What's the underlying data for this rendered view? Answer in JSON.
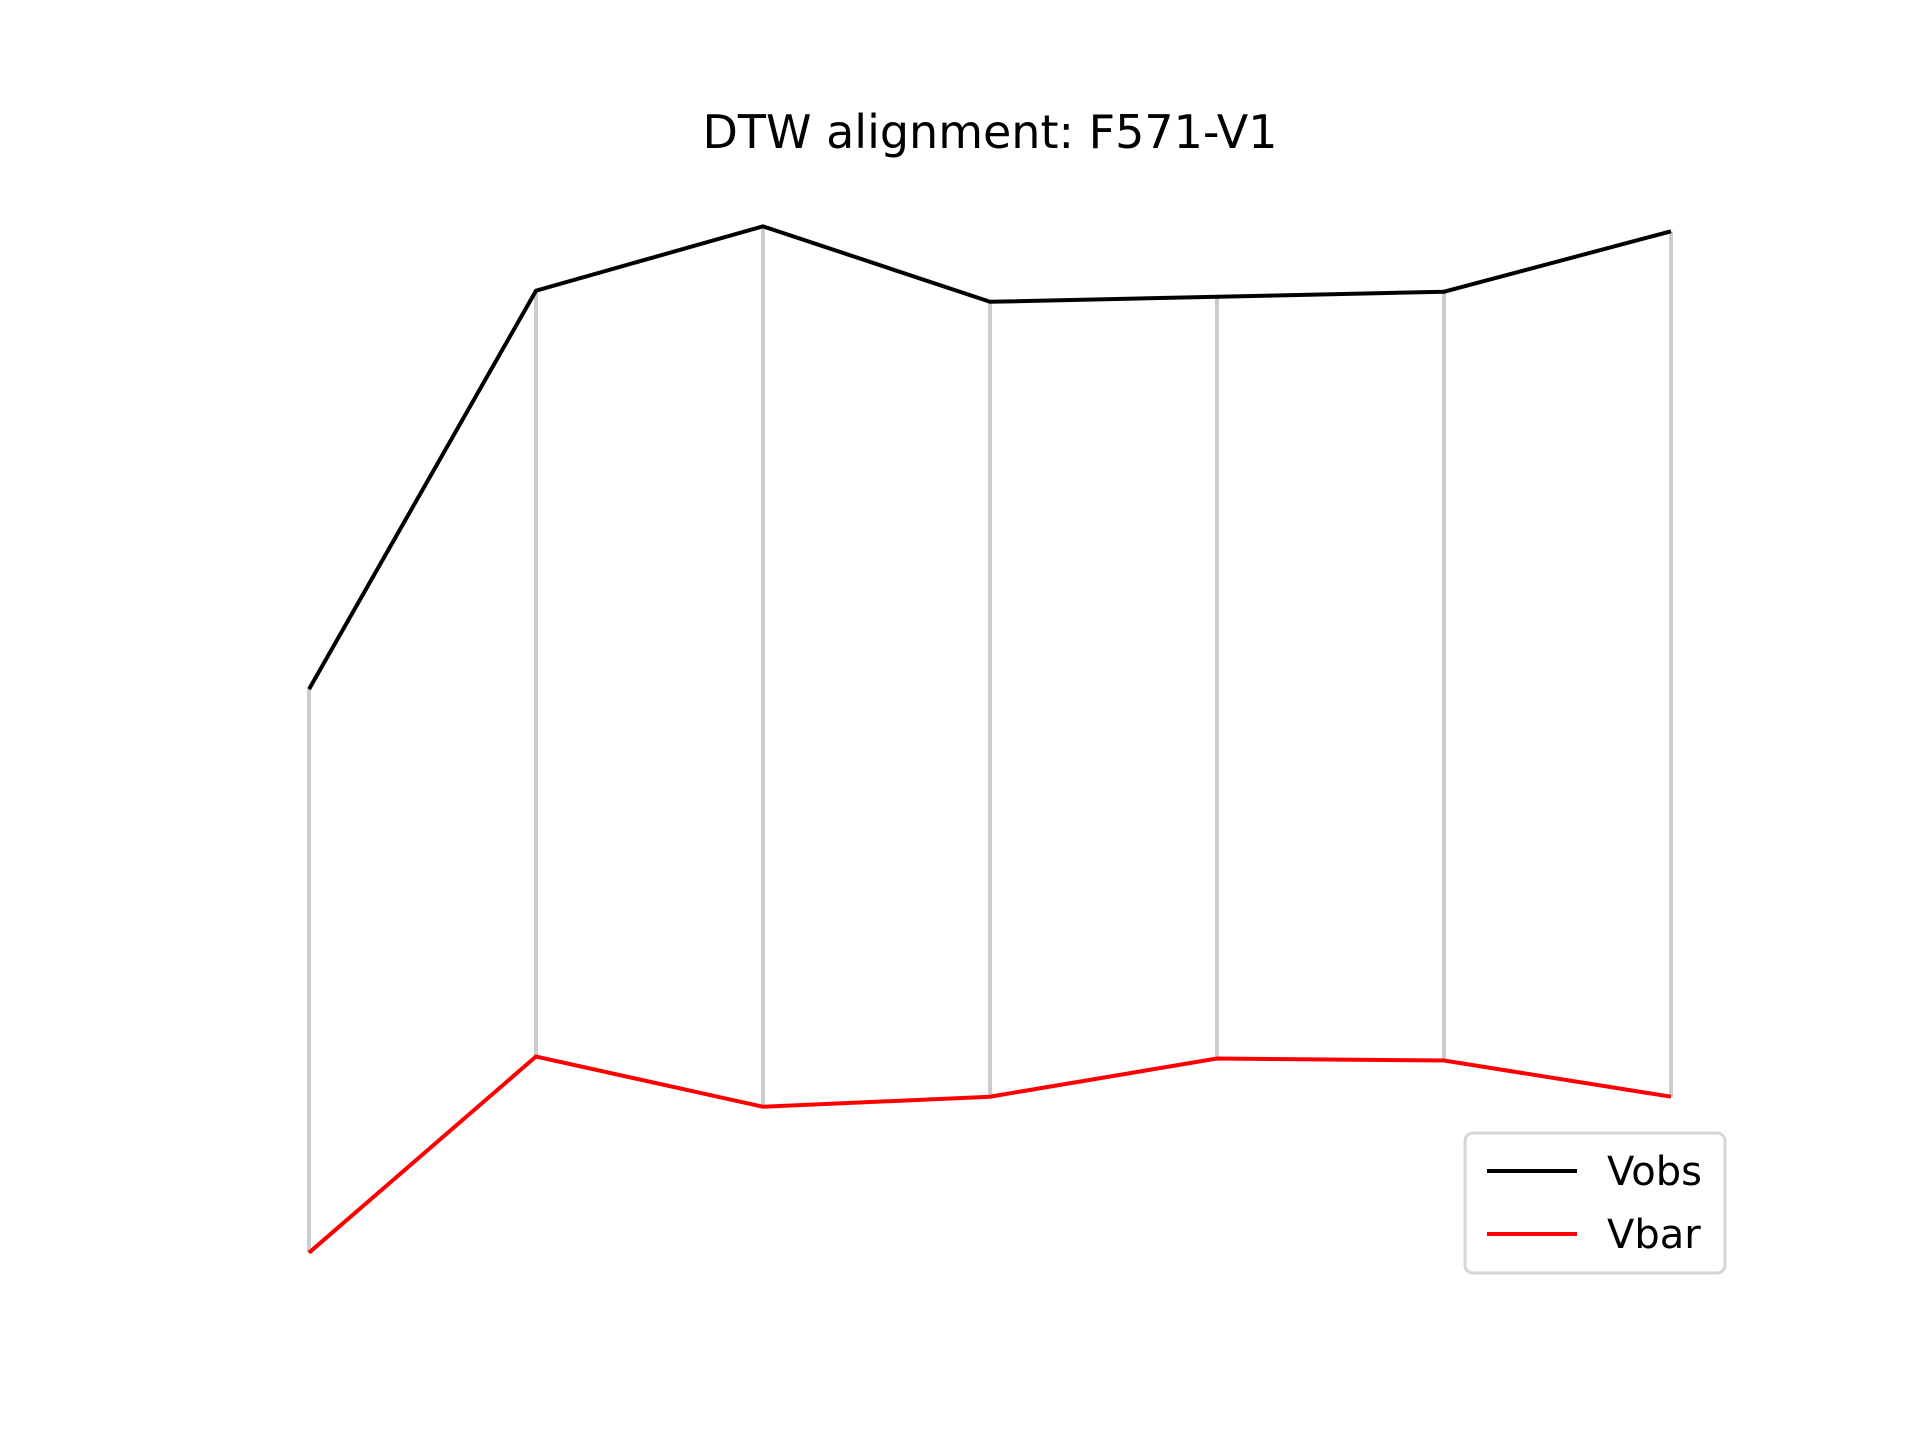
{
  "chart_data": {
    "type": "line",
    "title": "DTW alignment: F571-V1",
    "xlabel": "",
    "ylabel": "",
    "axes_visible": false,
    "grid": false,
    "legend_position": "lower right",
    "x": [
      0,
      1,
      2,
      3,
      4,
      5,
      6
    ],
    "series": [
      {
        "name": "Vobs",
        "color": "#000000",
        "values": [
          0.56,
          0.956,
          1.02,
          0.945,
          0.95,
          0.955,
          1.015
        ]
      },
      {
        "name": "Vbar",
        "color": "#ff0000",
        "values": [
          0.0,
          0.195,
          0.145,
          0.155,
          0.193,
          0.191,
          0.155
        ]
      }
    ],
    "alignment": {
      "color": "#cccccc",
      "pairs": [
        [
          0,
          0
        ],
        [
          1,
          1
        ],
        [
          2,
          2
        ],
        [
          3,
          3
        ],
        [
          4,
          4
        ],
        [
          5,
          5
        ],
        [
          6,
          6
        ]
      ]
    }
  }
}
